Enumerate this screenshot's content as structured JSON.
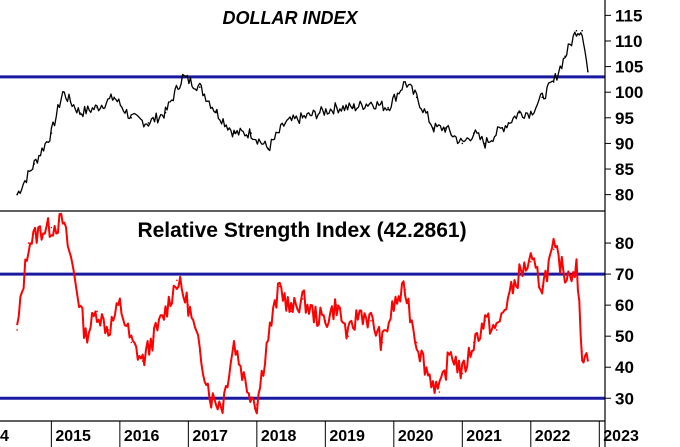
{
  "chart_data": [
    {
      "type": "line",
      "title": "DOLLAR INDEX",
      "series_color": "#000000",
      "ylim": [
        77,
        118
      ],
      "yticks": [
        80,
        85,
        90,
        95,
        100,
        105,
        110,
        115
      ],
      "reference_lines": [
        {
          "value": 103,
          "color": "#1a1aa0"
        }
      ],
      "x": [
        "2014-07",
        "2014-10",
        "2015-01",
        "2015-03",
        "2015-06",
        "2015-09",
        "2015-12",
        "2016-03",
        "2016-06",
        "2016-09",
        "2016-12",
        "2017-03",
        "2017-06",
        "2017-09",
        "2017-12",
        "2018-03",
        "2018-06",
        "2018-09",
        "2018-12",
        "2019-03",
        "2019-06",
        "2019-09",
        "2019-12",
        "2020-03",
        "2020-05",
        "2020-08",
        "2020-10",
        "2021-01",
        "2021-03",
        "2021-05",
        "2021-08",
        "2021-11",
        "2022-01",
        "2022-03",
        "2022-05",
        "2022-07",
        "2022-09",
        "2022-10",
        "2022-11"
      ],
      "values": [
        80,
        86,
        92,
        100,
        96,
        97,
        99,
        95,
        94,
        96,
        103,
        101,
        96,
        92,
        92,
        89,
        94,
        95,
        96,
        97,
        97,
        98,
        97,
        102,
        99,
        93,
        93,
        90,
        92,
        90,
        93,
        96,
        96,
        99,
        102,
        107,
        112,
        112,
        104
      ]
    },
    {
      "type": "line",
      "title": "Relative Strength Index (42.2861)",
      "series_color": "#ff0000",
      "ylim": [
        23,
        90
      ],
      "yticks": [
        30,
        40,
        50,
        60,
        70,
        80
      ],
      "reference_lines": [
        {
          "value": 70,
          "color": "#1a1aa0"
        },
        {
          "value": 30,
          "color": "#1a1aa0"
        }
      ],
      "x": [
        "2014-07",
        "2014-09",
        "2014-11",
        "2015-01",
        "2015-03",
        "2015-05",
        "2015-07",
        "2015-09",
        "2015-11",
        "2016-01",
        "2016-03",
        "2016-05",
        "2016-07",
        "2016-09",
        "2016-11",
        "2017-01",
        "2017-03",
        "2017-05",
        "2017-07",
        "2017-09",
        "2017-11",
        "2018-01",
        "2018-03",
        "2018-05",
        "2018-07",
        "2018-09",
        "2018-11",
        "2019-01",
        "2019-03",
        "2019-05",
        "2019-07",
        "2019-09",
        "2019-11",
        "2020-01",
        "2020-03",
        "2020-05",
        "2020-07",
        "2020-09",
        "2020-11",
        "2021-01",
        "2021-03",
        "2021-05",
        "2021-07",
        "2021-09",
        "2021-11",
        "2022-01",
        "2022-03",
        "2022-05",
        "2022-07",
        "2022-09",
        "2022-10",
        "2022-11"
      ],
      "values": [
        52,
        80,
        84,
        85,
        87,
        70,
        50,
        58,
        52,
        60,
        48,
        42,
        50,
        58,
        68,
        60,
        45,
        30,
        28,
        48,
        35,
        28,
        50,
        66,
        58,
        62,
        57,
        55,
        60,
        50,
        58,
        55,
        48,
        60,
        65,
        48,
        38,
        32,
        45,
        38,
        48,
        55,
        52,
        62,
        70,
        74,
        66,
        78,
        70,
        72,
        45,
        42
      ]
    }
  ],
  "x_axis": {
    "range": [
      "2014-04",
      "2023-02"
    ],
    "tick_labels": [
      {
        "date": "2014-01",
        "label": "4"
      },
      {
        "date": "2015-01",
        "label": "2015"
      },
      {
        "date": "2016-01",
        "label": "2016"
      },
      {
        "date": "2017-01",
        "label": "2017"
      },
      {
        "date": "2018-01",
        "label": "2018"
      },
      {
        "date": "2019-01",
        "label": "2019"
      },
      {
        "date": "2020-01",
        "label": "2020"
      },
      {
        "date": "2021-01",
        "label": "2021"
      },
      {
        "date": "2022-01",
        "label": "2022"
      },
      {
        "date": "2023-01",
        "label": "2023"
      }
    ]
  }
}
